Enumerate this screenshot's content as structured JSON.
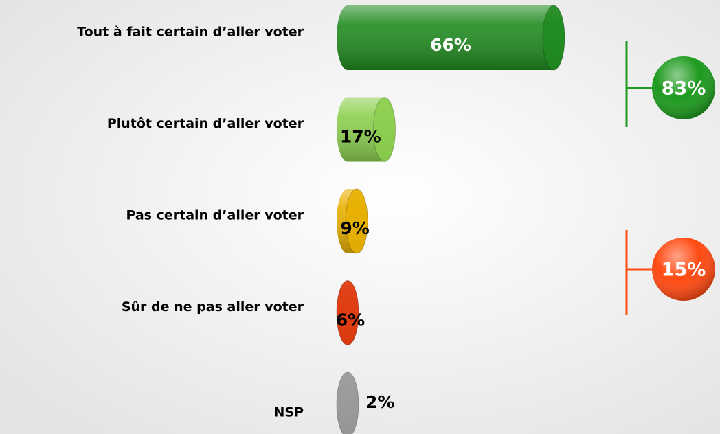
{
  "chart_data": {
    "type": "bar",
    "categories": [
      "Tout à fait certain d’aller voter",
      "Plutôt certain d’aller voter",
      "Pas certain d’aller voter",
      "Sûr de ne pas aller voter",
      "NSP"
    ],
    "values": [
      66,
      17,
      9,
      6,
      2
    ],
    "value_labels": [
      "66%",
      "17%",
      "9%",
      "6%",
      "2%"
    ],
    "colors": [
      "#1f8a1f",
      "#8ccf4e",
      "#e8b000",
      "#e03c10",
      "#9a9a9a"
    ],
    "label_colors": [
      "#ffffff",
      "#000000",
      "#000000",
      "#000000",
      "#000000"
    ],
    "groups": [
      {
        "value": 83,
        "label": "83%",
        "color": "#1e9a1e"
      },
      {
        "value": 15,
        "label": "15%",
        "color": "#ff4a12"
      }
    ]
  }
}
